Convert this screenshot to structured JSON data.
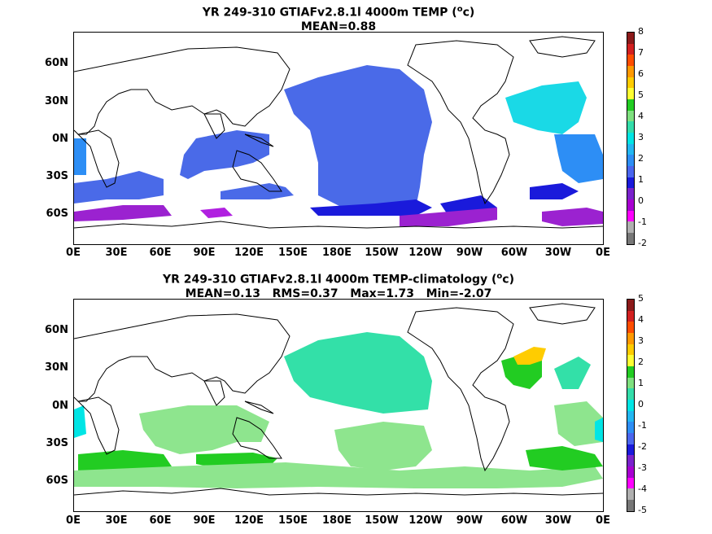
{
  "panels": [
    {
      "title_line1": "YR 249-310 GTIAFv2.8.1l 4000m TEMP (",
      "title_unit": "o",
      "title_tail": "c)",
      "title_line2": "MEAN=0.88",
      "colorbar_labels": [
        "8",
        "7",
        "6",
        "5",
        "4",
        "3",
        "2",
        "1",
        "0",
        "-1",
        "-2"
      ],
      "colorbar_colors": [
        "#8b1a1a",
        "#d22020",
        "#ff4d00",
        "#ff9900",
        "#ffcc00",
        "#ffff33",
        "#22cc22",
        "#7fe07f",
        "#33ddaa",
        "#00e5e5",
        "#22b7f2",
        "#2d8ef5",
        "#4a66ee",
        "#1a1adb",
        "#7a22cc",
        "#a800d1",
        "#ff00ff",
        "#b0b0b0",
        "#777777"
      ]
    },
    {
      "title_line1": "YR 249-310 GTIAFv2.8.1l 4000m TEMP-climatology (",
      "title_unit": "o",
      "title_tail": "c)",
      "title_line2": "MEAN=0.13   RMS=0.37   Max=1.73   Min=-2.07",
      "colorbar_labels": [
        "5",
        "4",
        "3",
        "2",
        "1",
        "0",
        "-1",
        "-2",
        "-3",
        "-4",
        "-5"
      ],
      "colorbar_colors": [
        "#8b1a1a",
        "#d22020",
        "#ff4d00",
        "#ff9900",
        "#ffcc00",
        "#ffff33",
        "#22cc22",
        "#7fe07f",
        "#33ddaa",
        "#00e5e5",
        "#22b7f2",
        "#2d8ef5",
        "#4a66ee",
        "#1a1adb",
        "#7a22cc",
        "#a800d1",
        "#ff00ff",
        "#b0b0b0",
        "#777777"
      ]
    }
  ],
  "y_axis_labels": [
    "60N",
    "30N",
    "0N",
    "30S",
    "60S"
  ],
  "x_axis_labels": [
    "0E",
    "30E",
    "60E",
    "90E",
    "120E",
    "150E",
    "180E",
    "150W",
    "120W",
    "90W",
    "60W",
    "30W",
    "0E"
  ]
}
